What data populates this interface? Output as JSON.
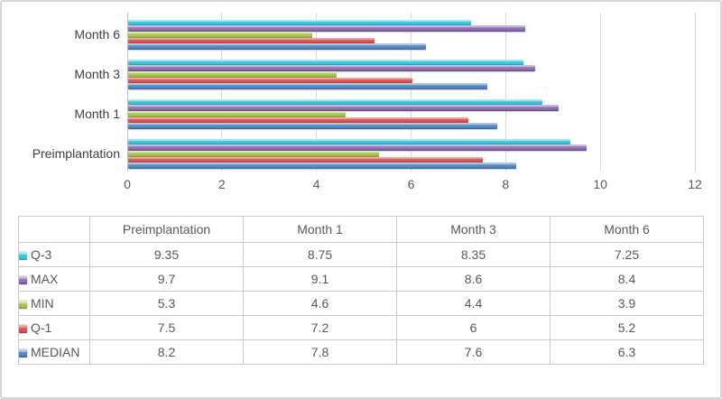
{
  "chart_data": {
    "type": "bar",
    "orientation": "horizontal",
    "title": "",
    "xlabel": "",
    "ylabel": "",
    "xlim": [
      0,
      12
    ],
    "x_ticks": [
      0,
      2,
      4,
      6,
      8,
      10,
      12
    ],
    "grid": true,
    "legend_position": "data-table-left",
    "categories": [
      "Preimplantation",
      "Month 1",
      "Month 3",
      "Month 6"
    ],
    "category_display_order_top_to_bottom": [
      "Month 6",
      "Month 3",
      "Month 1",
      "Preimplantation"
    ],
    "series_display_order_top_to_bottom_in_group": [
      "Q-3",
      "MAX",
      "MIN",
      "Q-1",
      "MEDIAN"
    ],
    "series": [
      {
        "name": "Q-3",
        "values": [
          9.35,
          8.75,
          8.35,
          7.25
        ],
        "color": "#3ec7db",
        "color_light": "#a9ebf3",
        "color_dark": "#2698ac"
      },
      {
        "name": "MAX",
        "values": [
          9.7,
          9.1,
          8.6,
          8.4
        ],
        "color": "#8f72b0",
        "color_light": "#cdbbe0",
        "color_dark": "#5e4382"
      },
      {
        "name": "MIN",
        "values": [
          5.3,
          4.6,
          4.4,
          3.9
        ],
        "color": "#a9c455",
        "color_light": "#deebac",
        "color_dark": "#7b9733"
      },
      {
        "name": "Q-1",
        "values": [
          7.5,
          7.2,
          6,
          5.2
        ],
        "color": "#db5753",
        "color_light": "#f4aba8",
        "color_dark": "#a83835"
      },
      {
        "name": "MEDIAN",
        "values": [
          8.2,
          7.8,
          7.6,
          6.3
        ],
        "color": "#5689c0",
        "color_light": "#afcae7",
        "color_dark": "#376499"
      }
    ]
  },
  "axis": {
    "x_tick_labels": [
      "0",
      "2",
      "4",
      "6",
      "8",
      "10",
      "12"
    ],
    "category_labels": [
      "Month 6",
      "Month 3",
      "Month 1",
      "Preimplantation"
    ]
  },
  "table": {
    "corner_label": "",
    "columns": [
      "Preimplantation",
      "Month 1",
      "Month 3",
      "Month 6"
    ],
    "rows": [
      {
        "label": "Q-3",
        "values": [
          "9.35",
          "8.75",
          "8.35",
          "7.25"
        ]
      },
      {
        "label": "MAX",
        "values": [
          "9.7",
          "9.1",
          "8.6",
          "8.4"
        ]
      },
      {
        "label": "MIN",
        "values": [
          "5.3",
          "4.6",
          "4.4",
          "3.9"
        ]
      },
      {
        "label": "Q-1",
        "values": [
          "7.5",
          "7.2",
          "6",
          "5.2"
        ]
      },
      {
        "label": "MEDIAN",
        "values": [
          "8.2",
          "7.8",
          "7.6",
          "6.3"
        ]
      }
    ]
  },
  "colors": {
    "gridline": "#d9d9d9",
    "axis_line": "#c3c3c3",
    "table_border": "#c9c9c9",
    "frame_border": "#d7d7d7",
    "text": "#595959"
  }
}
